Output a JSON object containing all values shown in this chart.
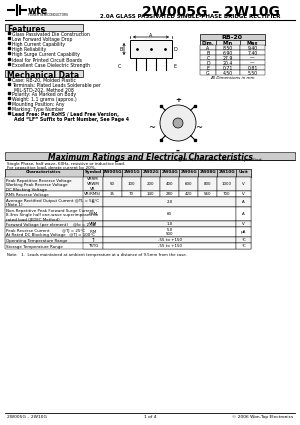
{
  "title": "2W005G – 2W10G",
  "subtitle": "2.0A GLASS PASSIVATED SINGLE-PHASE BRIDGE RECTIFIER",
  "bg_color": "#ffffff",
  "features_title": "Features",
  "features": [
    "Glass Passivated Die Construction",
    "Low Forward Voltage Drop",
    "High Current Capability",
    "High Reliability",
    "High Surge Current Capability",
    "Ideal for Printed Circuit Boards",
    "Excellent Case Dielectric Strength"
  ],
  "mech_title": "Mechanical Data",
  "mech": [
    [
      "bullet",
      "Case: RB-20, Molded Plastic"
    ],
    [
      "bullet",
      "Terminals: Plated Leads Solderable per"
    ],
    [
      "indent",
      "MIL-STD-202, Method 208"
    ],
    [
      "bullet",
      "Polarity: As Marked on Body"
    ],
    [
      "bullet",
      "Weight: 1.1 grams (approx.)"
    ],
    [
      "bullet",
      "Mounting Position: Any"
    ],
    [
      "bullet",
      "Marking: Type Number"
    ],
    [
      "bullet_bold",
      "Lead Free: Per RoHS / Lead Free Version,"
    ],
    [
      "indent_bold",
      "Add “LF” Suffix to Part Number, See Page 4"
    ]
  ],
  "dim_table_title": "RB-20",
  "dim_headers": [
    "Dim.",
    "Min",
    "Max"
  ],
  "dim_rows": [
    [
      "A",
      "8.50",
      "9.40"
    ],
    [
      "B",
      "6.90",
      "7.40"
    ],
    [
      "C",
      "27.9",
      "—"
    ],
    [
      "D",
      "20.4",
      "—"
    ],
    [
      "E",
      "0.71",
      "0.81"
    ],
    [
      "G",
      "4.50",
      "5.50"
    ]
  ],
  "dim_note": "All Dimensions in mm",
  "section_title": "Maximum Ratings and Electrical Characteristics",
  "section_note": "@TA=25°C unless otherwise specified",
  "table_note1": "Single Phase, half wave, 60Hz, resistive or inductive load.",
  "table_note2": "For capacitive load, derate current by 20%.",
  "col_headers": [
    "Characteristics",
    "Symbol",
    "2W005G",
    "2W01G",
    "2W02G",
    "2W04G",
    "2W06G",
    "2W08G",
    "2W10G",
    "Unit"
  ],
  "rows": [
    {
      "char": "Peak Repetitive Reverse Voltage\nWorking Peak Reverse Voltage\nDC Blocking Voltage",
      "symbol": "VRRM\nVRWM\nVR",
      "values": [
        "50",
        "100",
        "200",
        "400",
        "600",
        "800",
        "1000"
      ],
      "unit": "V",
      "span": false
    },
    {
      "char": "RMS Reverse Voltage",
      "symbol": "VR(RMS)",
      "values": [
        "35",
        "70",
        "140",
        "280",
        "420",
        "560",
        "700"
      ],
      "unit": "V",
      "span": false
    },
    {
      "char": "Average Rectified Output Current @TL = 50°C\n(Note 1)",
      "symbol": "Io",
      "values": [
        "2.0"
      ],
      "unit": "A",
      "span": true
    },
    {
      "char": "Non-Repetitive Peak Forward Surge Current\n8.3ms Single half one-wave superimposed on\nrated load (JEDEC Method)",
      "symbol": "IFSM",
      "values": [
        "60"
      ],
      "unit": "A",
      "span": true
    },
    {
      "char": "Forward Voltage (per element)    @Io = 2.0A",
      "symbol": "VFM",
      "values": [
        "1.0"
      ],
      "unit": "V",
      "span": true
    },
    {
      "char": "Peak Reverse Current          @TJ = 25°C\nAt Rated DC Blocking Voltage   @TJ = 100°C",
      "symbol": "IRM",
      "values": [
        "5.0\n500"
      ],
      "unit": "μA",
      "span": true
    },
    {
      "char": "Operating Temperature Range",
      "symbol": "TJ",
      "values": [
        "-55 to +150"
      ],
      "unit": "°C",
      "span": true
    },
    {
      "char": "Storage Temperature Range",
      "symbol": "TSTG",
      "values": [
        "-55 to +150"
      ],
      "unit": "°C",
      "span": true
    }
  ],
  "footnote": "Note:   1.  Leads maintained at ambient temperature at a distance of 9.5mm from the case.",
  "footer_left": "2W005G – 2W10G",
  "footer_center": "1 of 4",
  "footer_right": "© 2006 Won-Top Electronics"
}
